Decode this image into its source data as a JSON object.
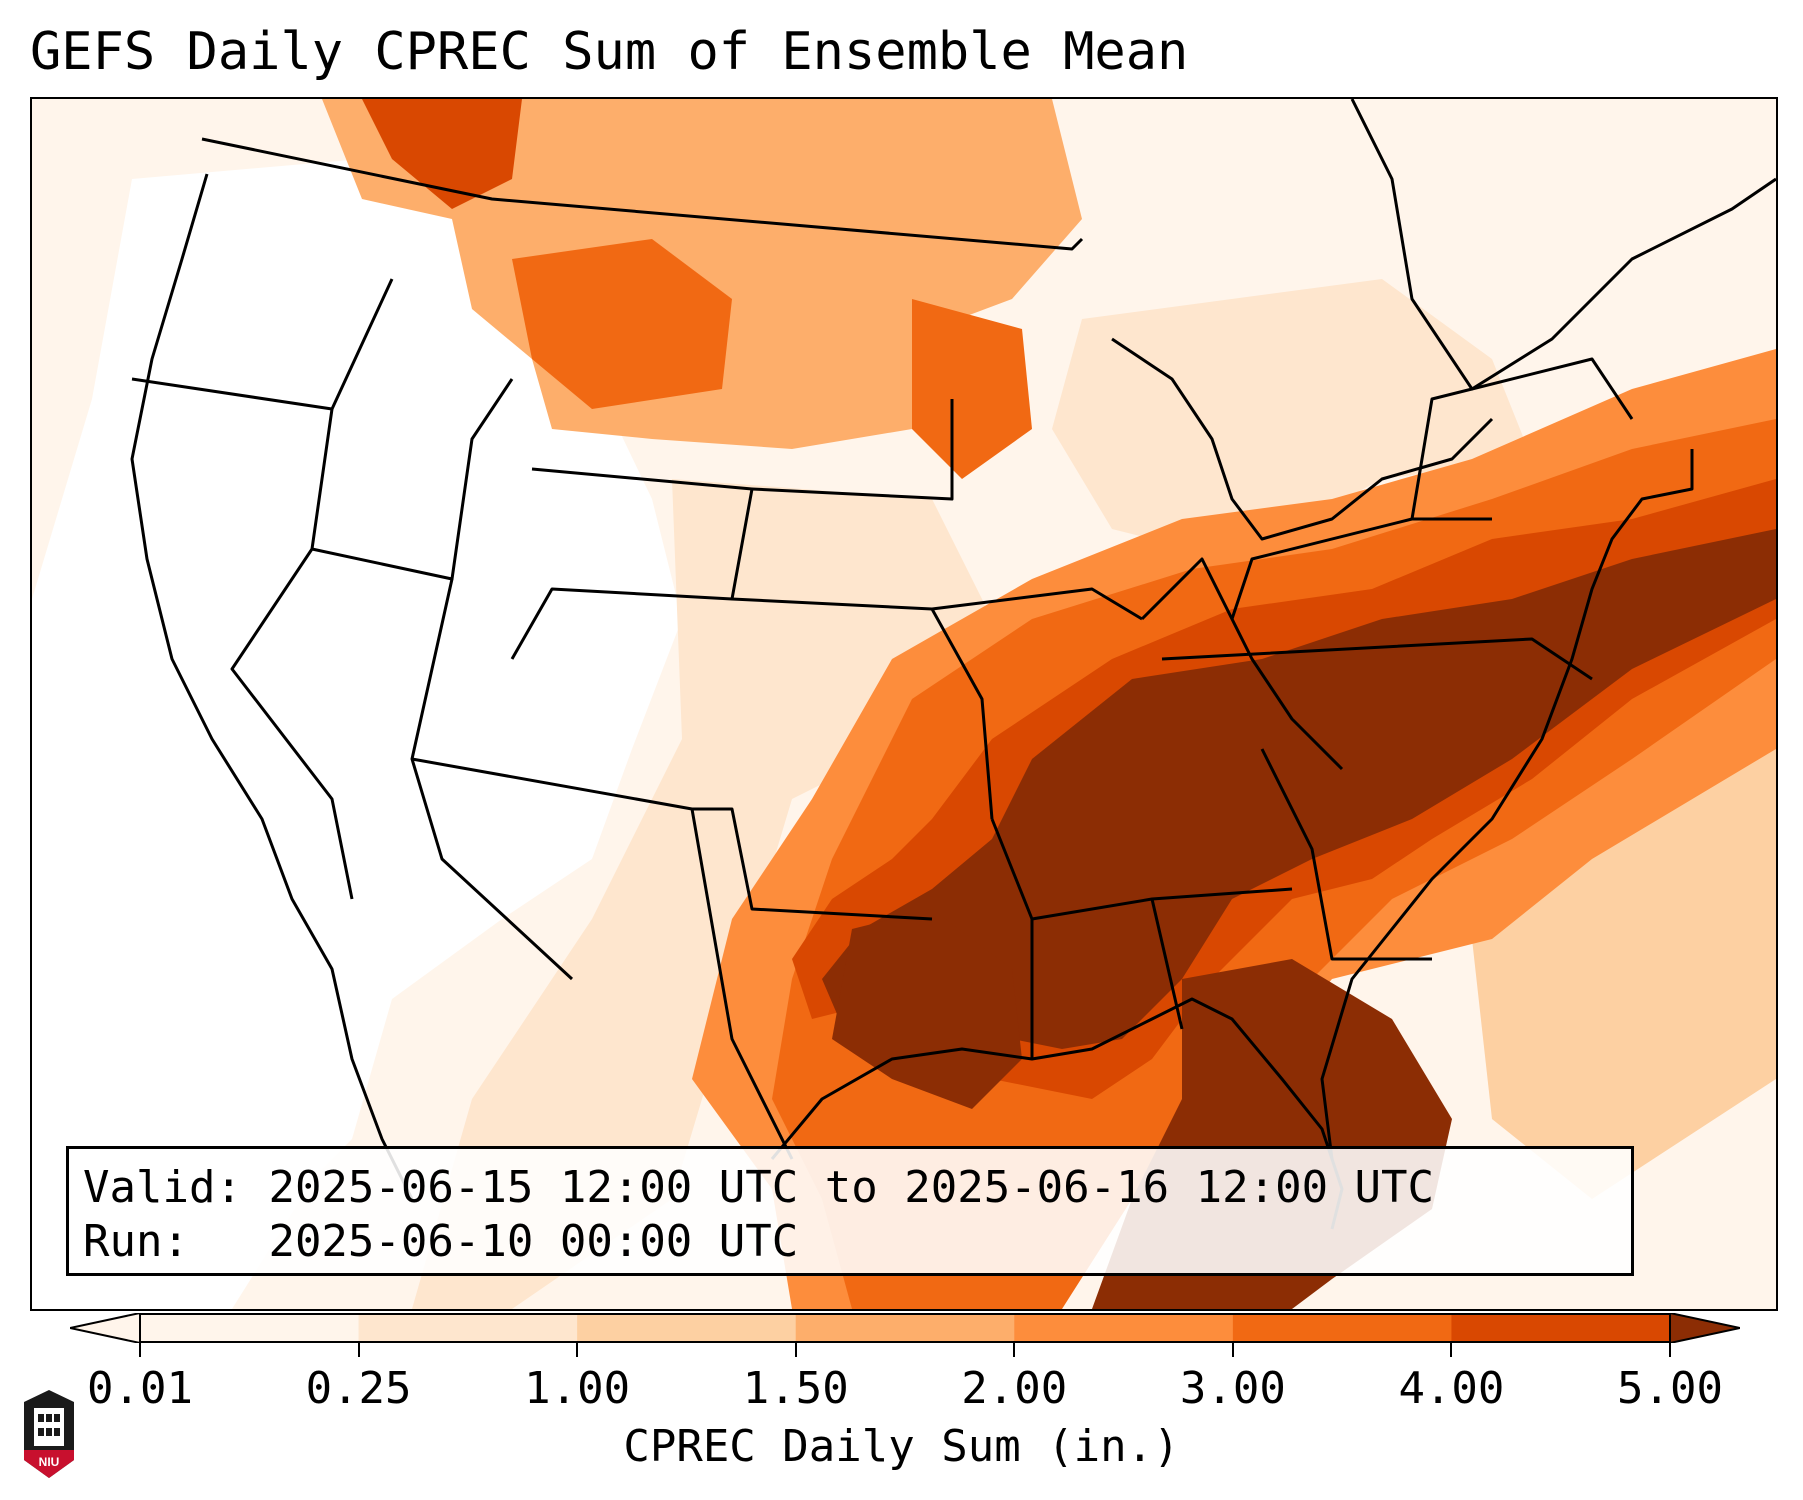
{
  "title": "GEFS Daily CPREC Sum of Ensemble Mean",
  "info": {
    "valid_label": "Valid:",
    "valid_value": "2025-06-15 12:00 UTC to 2025-06-16 12:00 UTC",
    "run_label": "Run:",
    "run_value": "2025-06-10 00:00 UTC"
  },
  "colorbar": {
    "label": "CPREC Daily Sum (in.)",
    "ticks": [
      "0.01",
      "0.25",
      "1.00",
      "1.50",
      "2.00",
      "3.00",
      "4.00",
      "5.00"
    ],
    "colors": [
      "#fff5eb",
      "#fee6ce",
      "#fdd0a2",
      "#fdae6b",
      "#fd8d3c",
      "#f16913",
      "#d94801",
      "#8c2d04"
    ],
    "extend": "both"
  },
  "logo": {
    "text": "NIU"
  },
  "legend_colors": {
    "none": "#ffffff",
    "c0": "#fff5eb",
    "c1": "#fee6ce",
    "c2": "#fdd0a2",
    "c3": "#fdae6b",
    "c4": "#fd8d3c",
    "c5": "#f16913",
    "c6": "#d94801",
    "c7": "#8c2d04"
  }
}
